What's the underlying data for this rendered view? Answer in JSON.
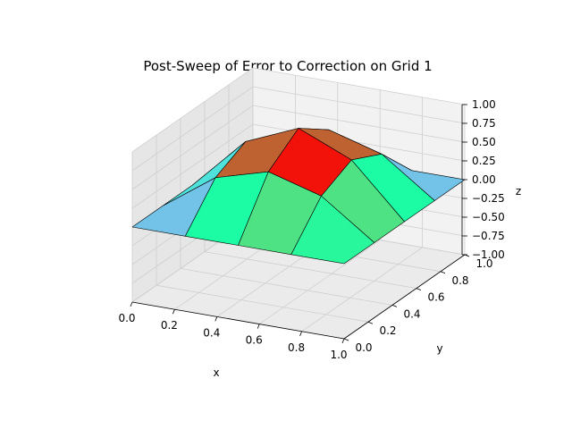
{
  "chart_data": {
    "type": "surface3d",
    "title": "Post-Sweep of Error to Correction on Grid 1",
    "xlabel": "x",
    "ylabel": "y",
    "zlabel": "z",
    "xlim": [
      0.0,
      1.0
    ],
    "ylim": [
      0.0,
      1.0
    ],
    "zlim": [
      -1.0,
      1.0
    ],
    "grid": true,
    "colormap": "rainbow",
    "x": [
      0.0,
      0.25,
      0.5,
      0.75,
      1.0
    ],
    "y": [
      0.0,
      0.25,
      0.5,
      0.75,
      1.0
    ],
    "z": [
      [
        0,
        0,
        0,
        0,
        0
      ],
      [
        0,
        0.5,
        0.7,
        0.5,
        0
      ],
      [
        0,
        0.7,
        1.0,
        0.7,
        0
      ],
      [
        0,
        0.5,
        0.7,
        0.5,
        0
      ],
      [
        0,
        0,
        0,
        0,
        0
      ]
    ],
    "x_ticks": [
      "0.0",
      "0.2",
      "0.4",
      "0.6",
      "0.8",
      "1.0"
    ],
    "y_ticks": [
      "0.0",
      "0.2",
      "0.4",
      "0.6",
      "0.8",
      "1.0"
    ],
    "z_ticks": [
      "−1.00",
      "−0.75",
      "−0.50",
      "−0.25",
      "0.00",
      "0.25",
      "0.50",
      "0.75",
      "1.00"
    ]
  }
}
